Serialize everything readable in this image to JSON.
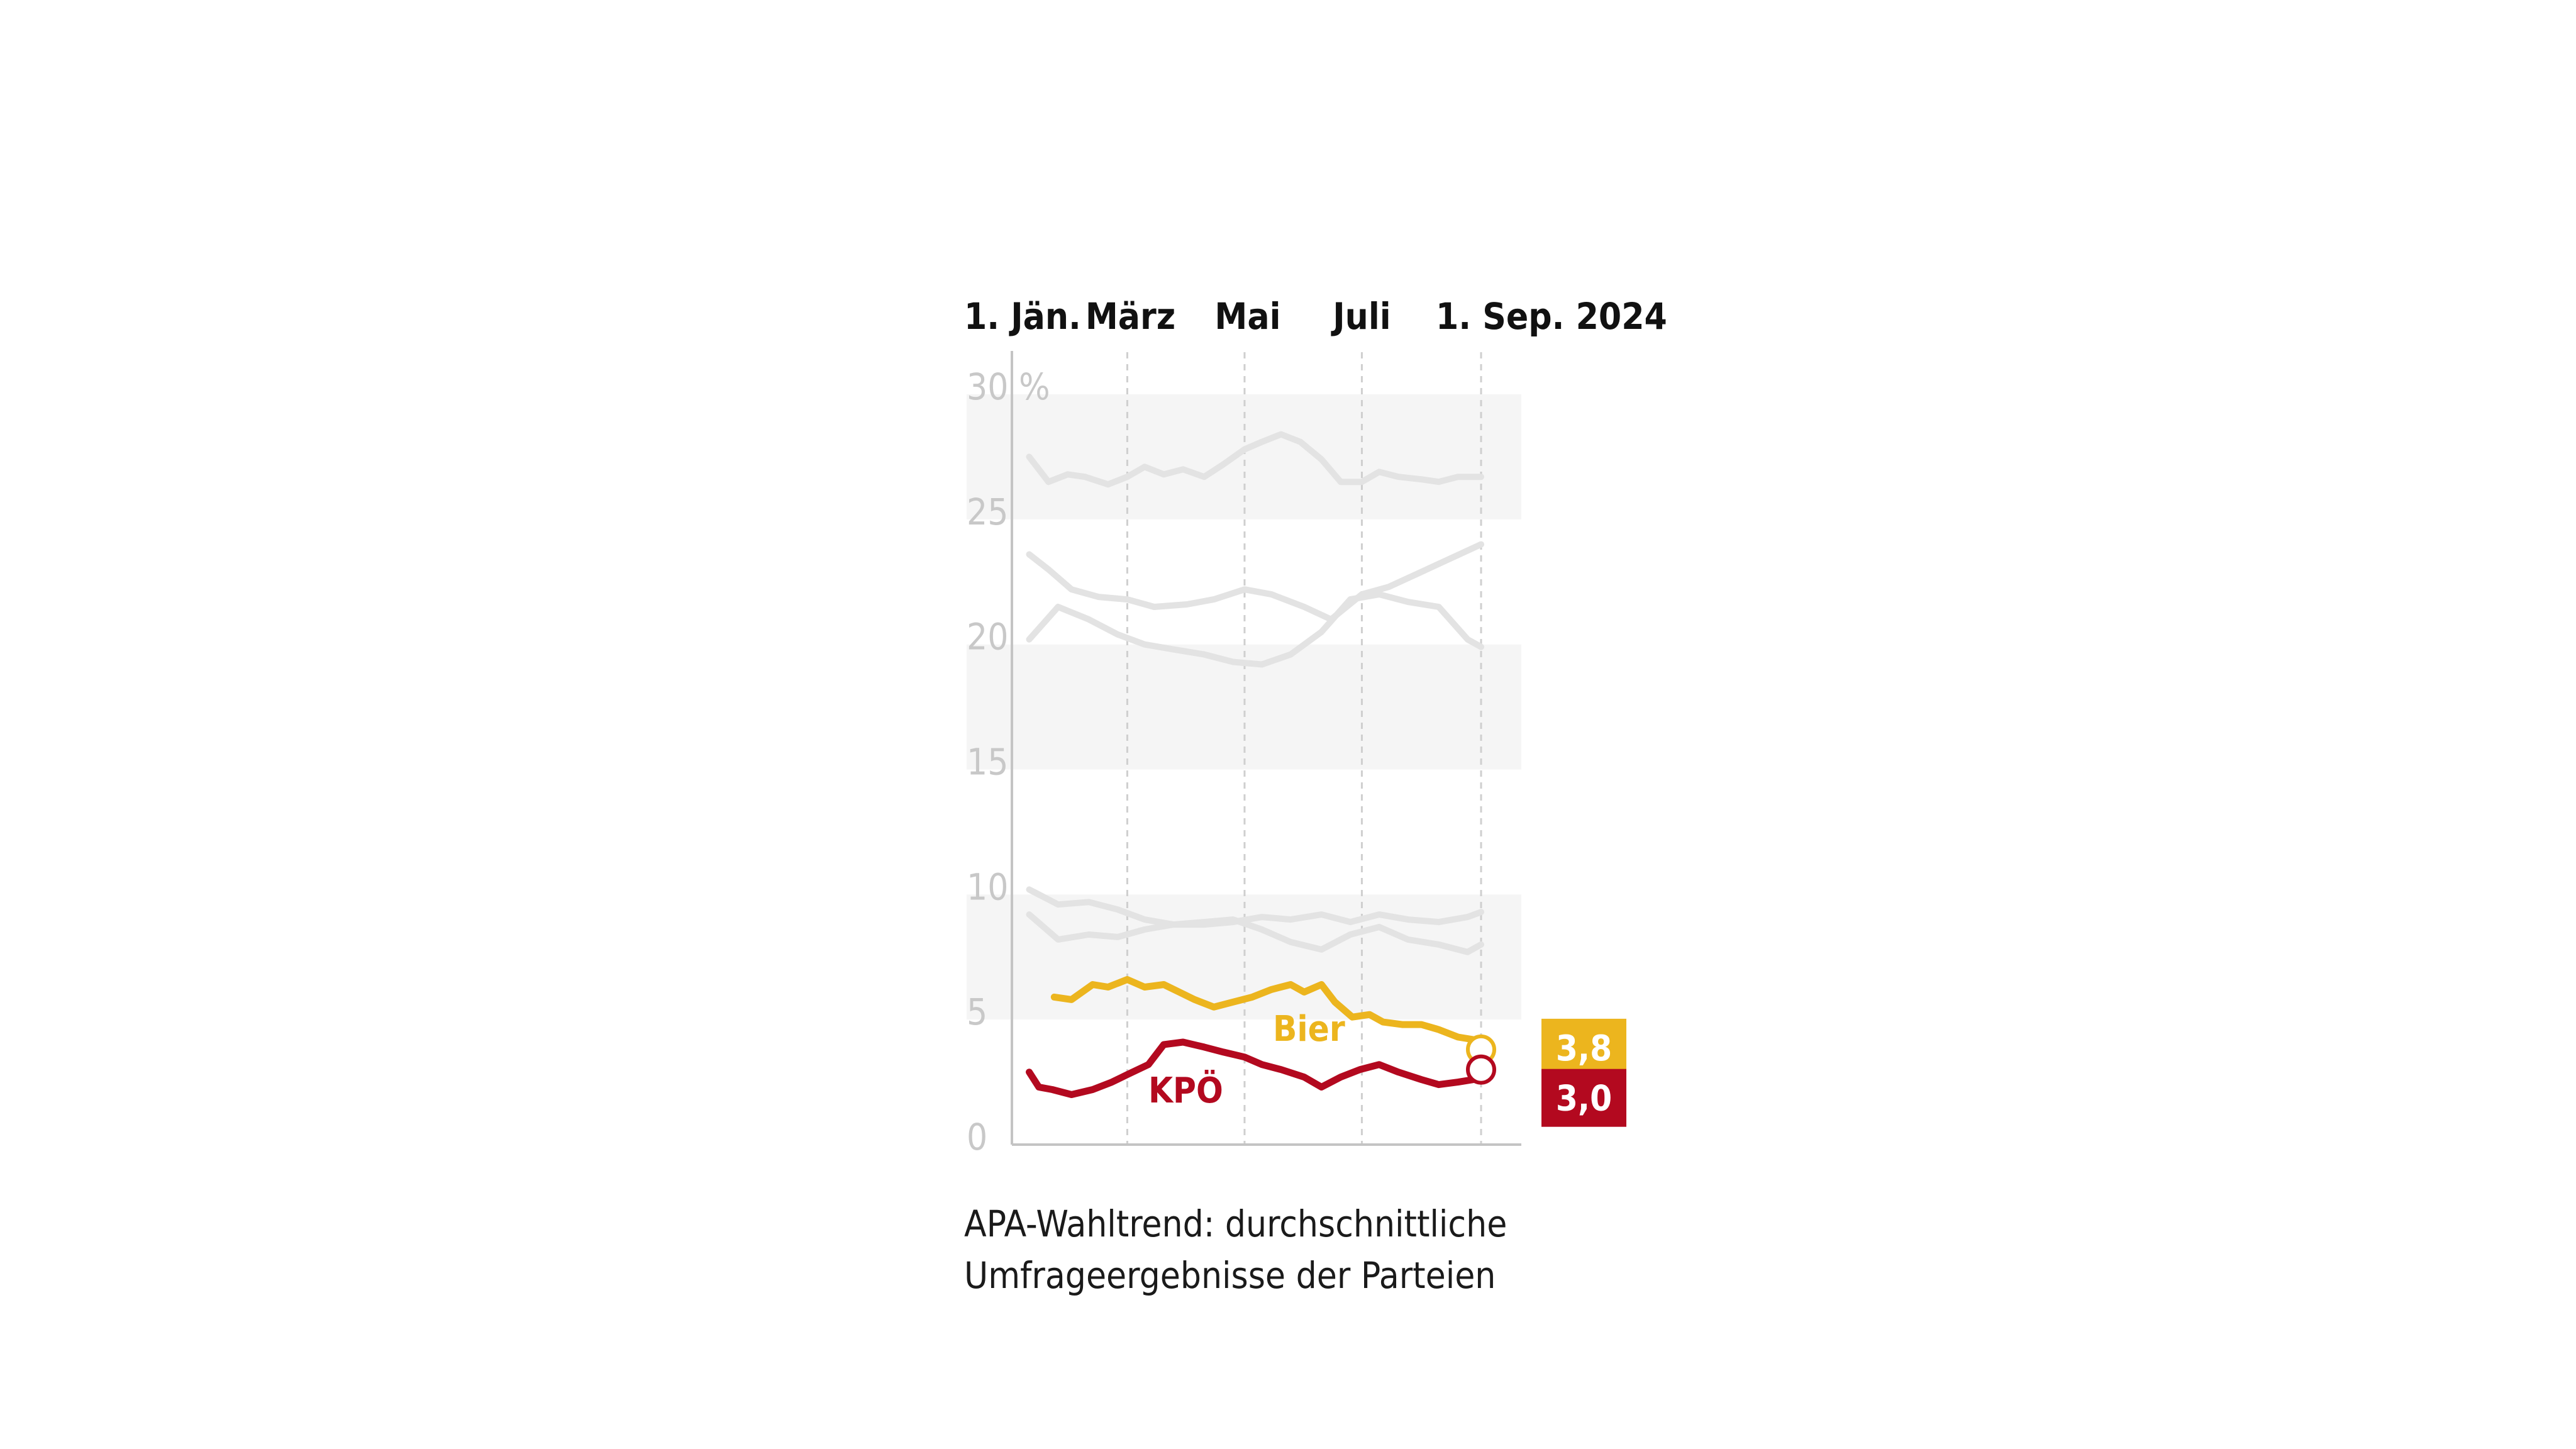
{
  "caption": "APA-Wahltrend: durchschnittliche Umfrageergebnisse der Parteien",
  "colors": {
    "bier": "#ecb51e",
    "kpoe": "#b3091f",
    "other_parties": "#e3e3e3",
    "band": "#f5f5f5",
    "axis": "#c4c4c4",
    "tick_text": "#c8c8c8"
  },
  "chart_data": {
    "type": "line",
    "title": "",
    "xlabel": "",
    "ylabel": "",
    "x_range": [
      "2024-01-01",
      "2024-09-01"
    ],
    "x_ticks": [
      {
        "date": "2024-01-01",
        "label": "1. Jän."
      },
      {
        "date": "2024-03-01",
        "label": "März"
      },
      {
        "date": "2024-05-01",
        "label": "Mai"
      },
      {
        "date": "2024-07-01",
        "label": "Juli"
      },
      {
        "date": "2024-09-01",
        "label": "1. Sep. 2024"
      }
    ],
    "ylim": [
      0,
      30
    ],
    "y_ticks": [
      {
        "value": 0,
        "label": "0"
      },
      {
        "value": 5,
        "label": "5"
      },
      {
        "value": 10,
        "label": "10"
      },
      {
        "value": 15,
        "label": "15"
      },
      {
        "value": 20,
        "label": "20"
      },
      {
        "value": 25,
        "label": "25"
      },
      {
        "value": 30,
        "label": "30 %"
      }
    ],
    "bands": [
      [
        5,
        10
      ],
      [
        15,
        20
      ],
      [
        25,
        30
      ]
    ],
    "series": [
      {
        "name": "Bier",
        "highlight": true,
        "color": "#ecb51e",
        "last_value_label": "3,8",
        "x": [
          "2024-01-23",
          "2024-02-01",
          "2024-02-12",
          "2024-02-20",
          "2024-03-01",
          "2024-03-10",
          "2024-03-20",
          "2024-03-28",
          "2024-04-05",
          "2024-04-15",
          "2024-04-25",
          "2024-05-05",
          "2024-05-15",
          "2024-05-25",
          "2024-06-01",
          "2024-06-10",
          "2024-06-17",
          "2024-06-26",
          "2024-07-05",
          "2024-07-12",
          "2024-07-22",
          "2024-08-01",
          "2024-08-10",
          "2024-08-20",
          "2024-08-28",
          "2024-09-01"
        ],
        "values": [
          5.9,
          5.8,
          6.4,
          6.3,
          6.6,
          6.3,
          6.4,
          6.1,
          5.8,
          5.5,
          5.7,
          5.9,
          6.2,
          6.4,
          6.1,
          6.4,
          5.7,
          5.1,
          5.2,
          4.9,
          4.8,
          4.8,
          4.6,
          4.3,
          4.2,
          3.8
        ]
      },
      {
        "name": "KPÖ",
        "highlight": true,
        "color": "#b3091f",
        "last_value_label": "3,0",
        "x": [
          "2024-01-10",
          "2024-01-15",
          "2024-01-22",
          "2024-02-01",
          "2024-02-12",
          "2024-02-22",
          "2024-03-01",
          "2024-03-12",
          "2024-03-20",
          "2024-03-30",
          "2024-04-10",
          "2024-04-20",
          "2024-05-01",
          "2024-05-10",
          "2024-05-20",
          "2024-06-01",
          "2024-06-10",
          "2024-06-20",
          "2024-06-30",
          "2024-07-10",
          "2024-07-20",
          "2024-08-01",
          "2024-08-10",
          "2024-08-20",
          "2024-08-28",
          "2024-09-01"
        ],
        "values": [
          2.9,
          2.3,
          2.2,
          2.0,
          2.2,
          2.5,
          2.8,
          3.2,
          4.0,
          4.1,
          3.9,
          3.7,
          3.5,
          3.2,
          3.0,
          2.7,
          2.3,
          2.7,
          3.0,
          3.2,
          2.9,
          2.6,
          2.4,
          2.5,
          2.6,
          3.0
        ]
      },
      {
        "name": "",
        "highlight": false,
        "color": "#e3e3e3",
        "x": [
          "2024-01-10",
          "2024-01-20",
          "2024-01-30",
          "2024-02-08",
          "2024-02-20",
          "2024-03-01",
          "2024-03-10",
          "2024-03-20",
          "2024-03-30",
          "2024-04-10",
          "2024-04-20",
          "2024-05-01",
          "2024-05-10",
          "2024-05-20",
          "2024-05-30",
          "2024-06-10",
          "2024-06-20",
          "2024-07-01",
          "2024-07-10",
          "2024-07-20",
          "2024-08-01",
          "2024-08-10",
          "2024-08-20",
          "2024-09-01"
        ],
        "values": [
          27.5,
          26.5,
          26.8,
          26.7,
          26.4,
          26.7,
          27.1,
          26.8,
          27.0,
          26.7,
          27.2,
          27.8,
          28.1,
          28.4,
          28.1,
          27.4,
          26.5,
          26.5,
          26.9,
          26.7,
          26.6,
          26.5,
          26.7,
          26.7
        ]
      },
      {
        "name": "",
        "highlight": false,
        "color": "#e3e3e3",
        "x": [
          "2024-01-10",
          "2024-01-20",
          "2024-02-01",
          "2024-02-15",
          "2024-03-01",
          "2024-03-15",
          "2024-04-01",
          "2024-04-15",
          "2024-05-01",
          "2024-05-15",
          "2024-06-01",
          "2024-06-15",
          "2024-07-01",
          "2024-07-15",
          "2024-08-01",
          "2024-08-15",
          "2024-09-01"
        ],
        "values": [
          23.6,
          23.0,
          22.2,
          21.9,
          21.8,
          21.5,
          21.6,
          21.8,
          22.2,
          22.0,
          21.5,
          21.0,
          22.0,
          22.3,
          22.9,
          23.4,
          24.0
        ]
      },
      {
        "name": "",
        "highlight": false,
        "color": "#e3e3e3",
        "x": [
          "2024-01-10",
          "2024-01-25",
          "2024-02-10",
          "2024-02-25",
          "2024-03-10",
          "2024-03-25",
          "2024-04-10",
          "2024-04-25",
          "2024-05-10",
          "2024-05-25",
          "2024-06-10",
          "2024-06-25",
          "2024-07-10",
          "2024-07-25",
          "2024-08-10",
          "2024-08-25",
          "2024-09-01"
        ],
        "values": [
          20.2,
          21.5,
          21.0,
          20.4,
          20.0,
          19.8,
          19.6,
          19.3,
          19.2,
          19.6,
          20.5,
          21.8,
          22.0,
          21.7,
          21.5,
          20.2,
          19.9
        ]
      },
      {
        "name": "",
        "highlight": false,
        "color": "#e3e3e3",
        "x": [
          "2024-01-10",
          "2024-01-25",
          "2024-02-10",
          "2024-02-25",
          "2024-03-10",
          "2024-03-25",
          "2024-04-10",
          "2024-04-25",
          "2024-05-10",
          "2024-05-25",
          "2024-06-10",
          "2024-06-25",
          "2024-07-10",
          "2024-07-25",
          "2024-08-10",
          "2024-08-25",
          "2024-09-01"
        ],
        "values": [
          10.2,
          9.6,
          9.7,
          9.4,
          9.0,
          8.8,
          8.8,
          8.9,
          9.1,
          9.0,
          9.2,
          8.9,
          9.2,
          9.0,
          8.9,
          9.1,
          9.3
        ]
      },
      {
        "name": "",
        "highlight": false,
        "color": "#e3e3e3",
        "x": [
          "2024-01-10",
          "2024-01-25",
          "2024-02-10",
          "2024-02-25",
          "2024-03-10",
          "2024-03-25",
          "2024-04-10",
          "2024-04-25",
          "2024-05-10",
          "2024-05-25",
          "2024-06-10",
          "2024-06-25",
          "2024-07-10",
          "2024-07-25",
          "2024-08-10",
          "2024-08-25",
          "2024-09-01"
        ],
        "values": [
          9.2,
          8.2,
          8.4,
          8.3,
          8.6,
          8.8,
          8.9,
          9.0,
          8.6,
          8.1,
          7.8,
          8.4,
          8.7,
          8.2,
          8.0,
          7.7,
          8.0
        ]
      }
    ]
  }
}
